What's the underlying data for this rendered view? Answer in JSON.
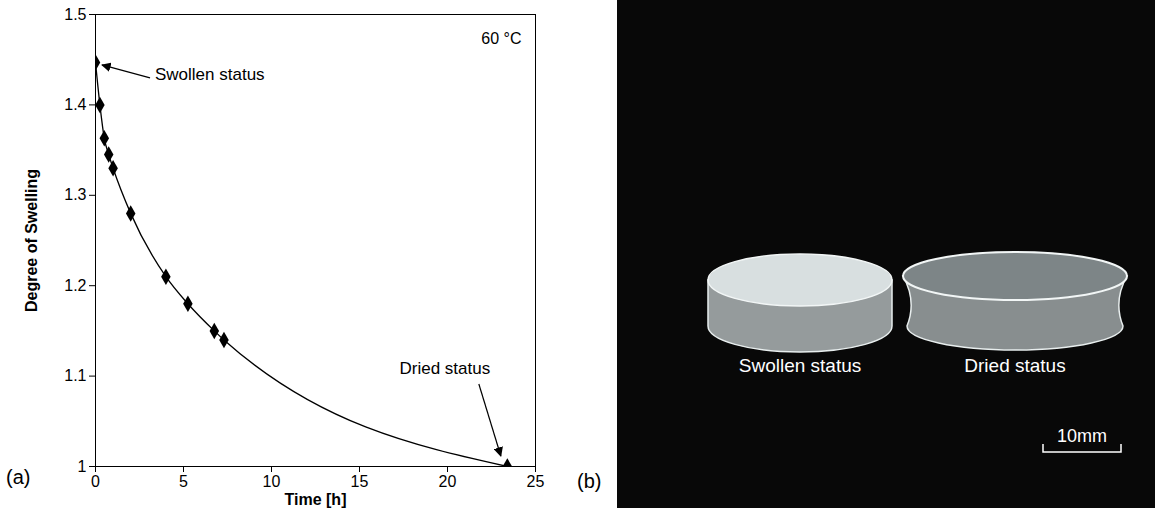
{
  "chart_data": {
    "type": "line",
    "panel_label": "(a)",
    "x_label": "Time [h]",
    "y_label": "Degree of Swelling",
    "x": [
      0,
      0.25,
      0.5,
      0.75,
      1,
      2,
      4,
      5.25,
      6.75,
      7.3,
      23.4
    ],
    "values": [
      1.447,
      1.4,
      1.363,
      1.345,
      1.33,
      1.28,
      1.21,
      1.18,
      1.15,
      1.14,
      1.0
    ],
    "color": "#000000",
    "marker": "diamond",
    "line_style": "solid",
    "xlim": [
      0,
      25
    ],
    "xticks": [
      0,
      5,
      10,
      15,
      20,
      25
    ],
    "ylim": [
      1,
      1.5
    ],
    "yticks": [
      1,
      1.1,
      1.2,
      1.3,
      1.4,
      1.5
    ],
    "grid": false,
    "annotations": [
      {
        "text": "60 °C"
      },
      {
        "text": "Swollen status",
        "x": 0,
        "y": 1.447
      },
      {
        "text": "Dried status",
        "x": 23.4,
        "y": 1
      }
    ]
  },
  "photo": {
    "panel_label": "(b)",
    "captions": [
      "Swollen status",
      "Dried status"
    ],
    "scale_bar": "10mm"
  }
}
